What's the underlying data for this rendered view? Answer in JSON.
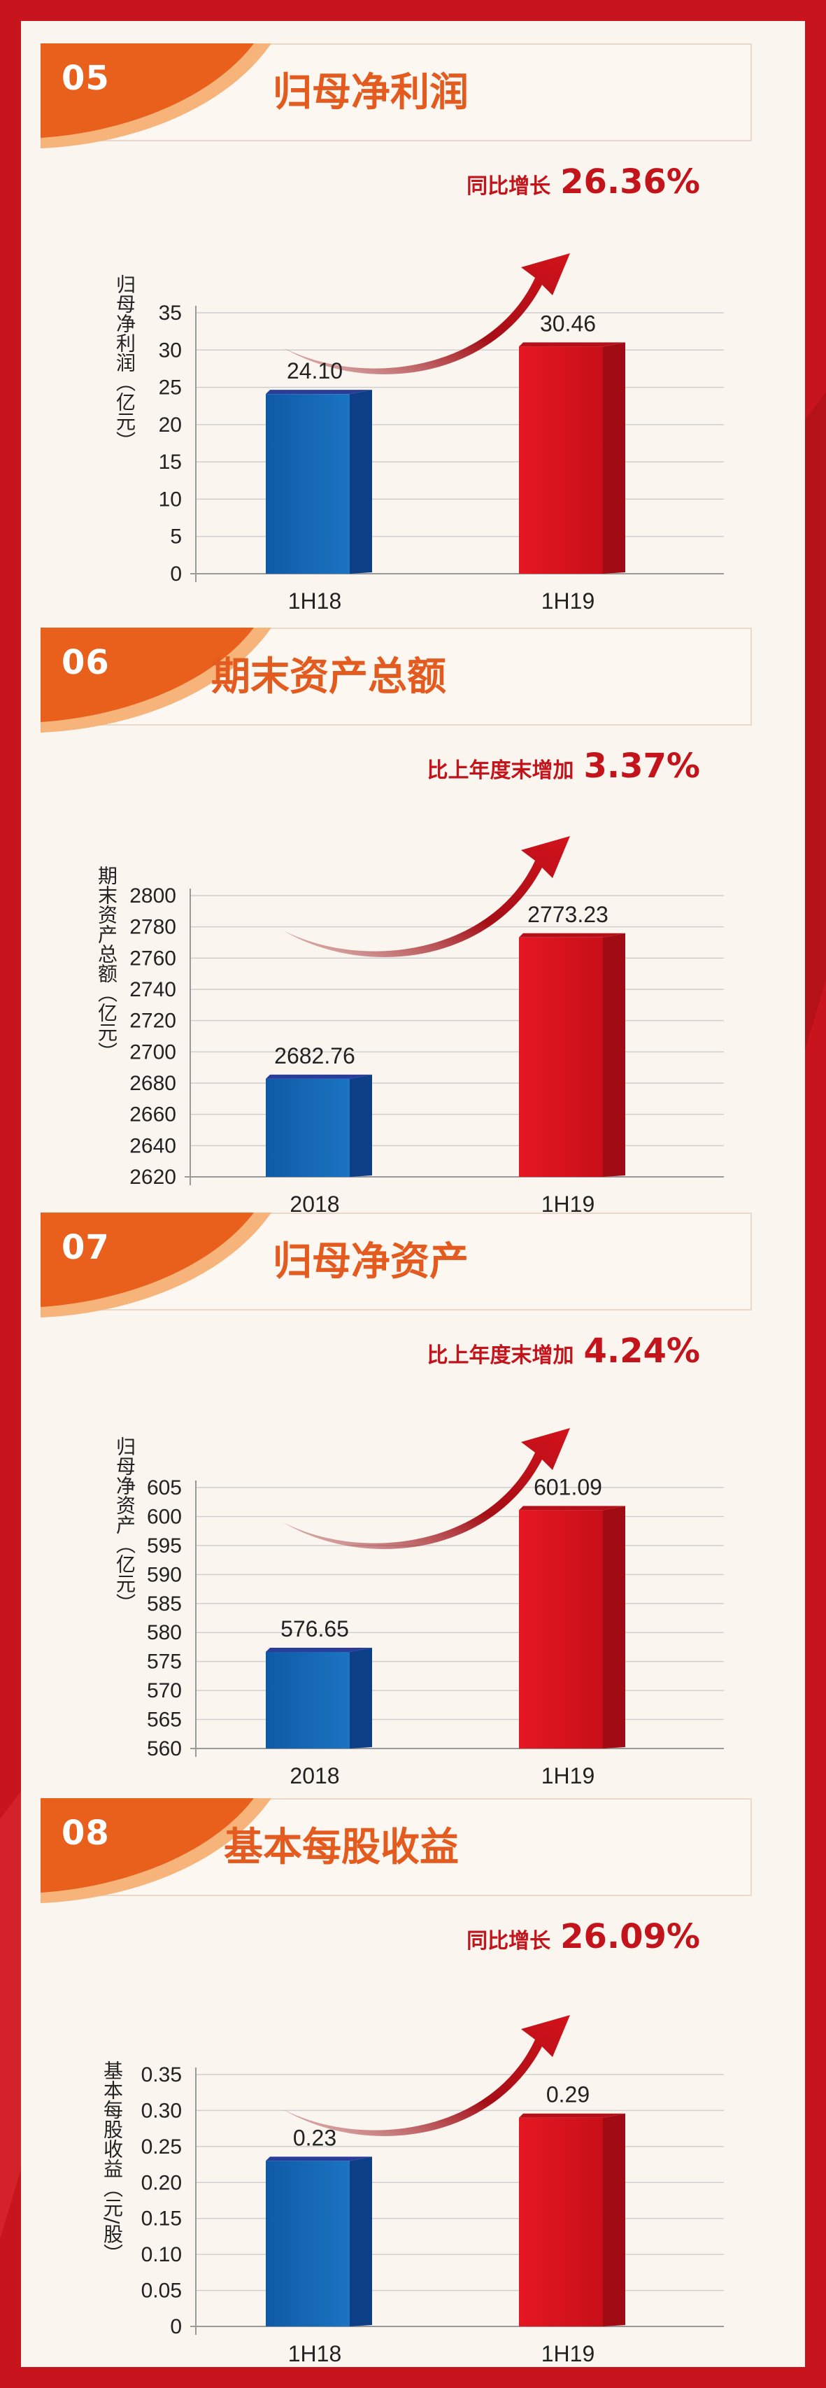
{
  "colors": {
    "blue": "#1562ad",
    "red": "#d8121c",
    "accent": "#e45b20",
    "growth": "#c3141c"
  },
  "chart_data": [
    {
      "type": "bar",
      "section_number": "05",
      "title": "归母净利润",
      "growth_label": "同比增长",
      "growth_value": "26.36%",
      "ylabel": "归母净利润（亿元）",
      "categories": [
        "1H18",
        "1H19"
      ],
      "values": [
        24.1,
        30.46
      ],
      "value_labels": [
        "24.10",
        "30.46"
      ],
      "yticks": [
        0,
        5,
        10,
        15,
        20,
        25,
        30,
        35
      ],
      "ytick_labels": [
        "0",
        "5",
        "10",
        "15",
        "20",
        "25",
        "30",
        "35"
      ],
      "ylim": [
        0,
        35
      ]
    },
    {
      "type": "bar",
      "section_number": "06",
      "title": "期末资产总额",
      "growth_label": "比上年度末增加",
      "growth_value": "3.37%",
      "ylabel": "期末资产总额（亿元）",
      "categories": [
        "2018",
        "1H19"
      ],
      "values": [
        2682.76,
        2773.23
      ],
      "value_labels": [
        "2682.76",
        "2773.23"
      ],
      "yticks": [
        2620,
        2640,
        2660,
        2680,
        2700,
        2720,
        2740,
        2760,
        2780,
        2800
      ],
      "ytick_labels": [
        "2620",
        "2640",
        "2660",
        "2680",
        "2700",
        "2720",
        "2740",
        "2760",
        "2780",
        "2800"
      ],
      "ylim": [
        2620,
        2800
      ]
    },
    {
      "type": "bar",
      "section_number": "07",
      "title": "归母净资产",
      "growth_label": "比上年度末增加",
      "growth_value": "4.24%",
      "ylabel": "归母净资产（亿元）",
      "categories": [
        "2018",
        "1H19"
      ],
      "values": [
        576.65,
        601.09
      ],
      "value_labels": [
        "576.65",
        "601.09"
      ],
      "yticks": [
        560,
        565,
        570,
        575,
        580,
        585,
        590,
        595,
        600,
        605
      ],
      "ytick_labels": [
        "560",
        "565",
        "570",
        "575",
        "580",
        "585",
        "590",
        "595",
        "600",
        "605"
      ],
      "ylim": [
        560,
        605
      ]
    },
    {
      "type": "bar",
      "section_number": "08",
      "title": "基本每股收益",
      "growth_label": "同比增长",
      "growth_value": "26.09%",
      "ylabel": "基本每股收益（元/股）",
      "categories": [
        "1H18",
        "1H19"
      ],
      "values": [
        0.23,
        0.29
      ],
      "value_labels": [
        "0.23",
        "0.29"
      ],
      "yticks": [
        0,
        0.05,
        0.1,
        0.15,
        0.2,
        0.25,
        0.3,
        0.35
      ],
      "ytick_labels": [
        "0",
        "0.05",
        "0.10",
        "0.15",
        "0.20",
        "0.25",
        "0.30",
        "0.35"
      ],
      "ylim": [
        0,
        0.35
      ]
    }
  ]
}
